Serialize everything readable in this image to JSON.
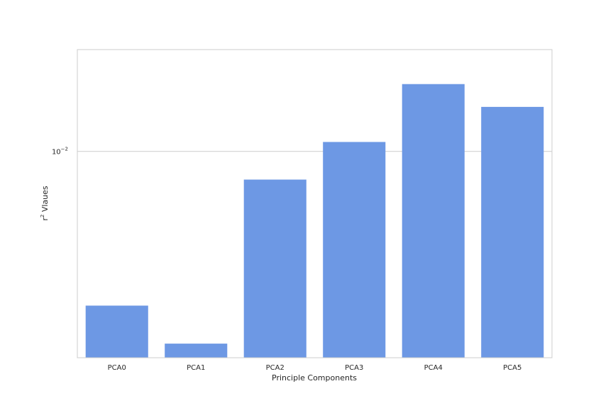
{
  "chart_data": {
    "type": "bar",
    "title": "",
    "xlabel": "Principle Components",
    "ylabel_base": "r",
    "ylabel_sup": "2",
    "ylabel_rest": " Vlaues",
    "y_scale": "log",
    "ylim": [
      0.00358,
      0.0166
    ],
    "y_ticks": [
      {
        "value": 0.01,
        "base": "10",
        "exp": "−2"
      }
    ],
    "grid": "y-major",
    "categories": [
      "PCA0",
      "PCA1",
      "PCA2",
      "PCA3",
      "PCA4",
      "PCA5"
    ],
    "values": [
      0.00464,
      0.00384,
      0.00869,
      0.01048,
      0.01398,
      0.01248
    ],
    "bar_color": "#6d98e4",
    "grid_color": "#cccccc",
    "spine_color": "#cccccc"
  }
}
